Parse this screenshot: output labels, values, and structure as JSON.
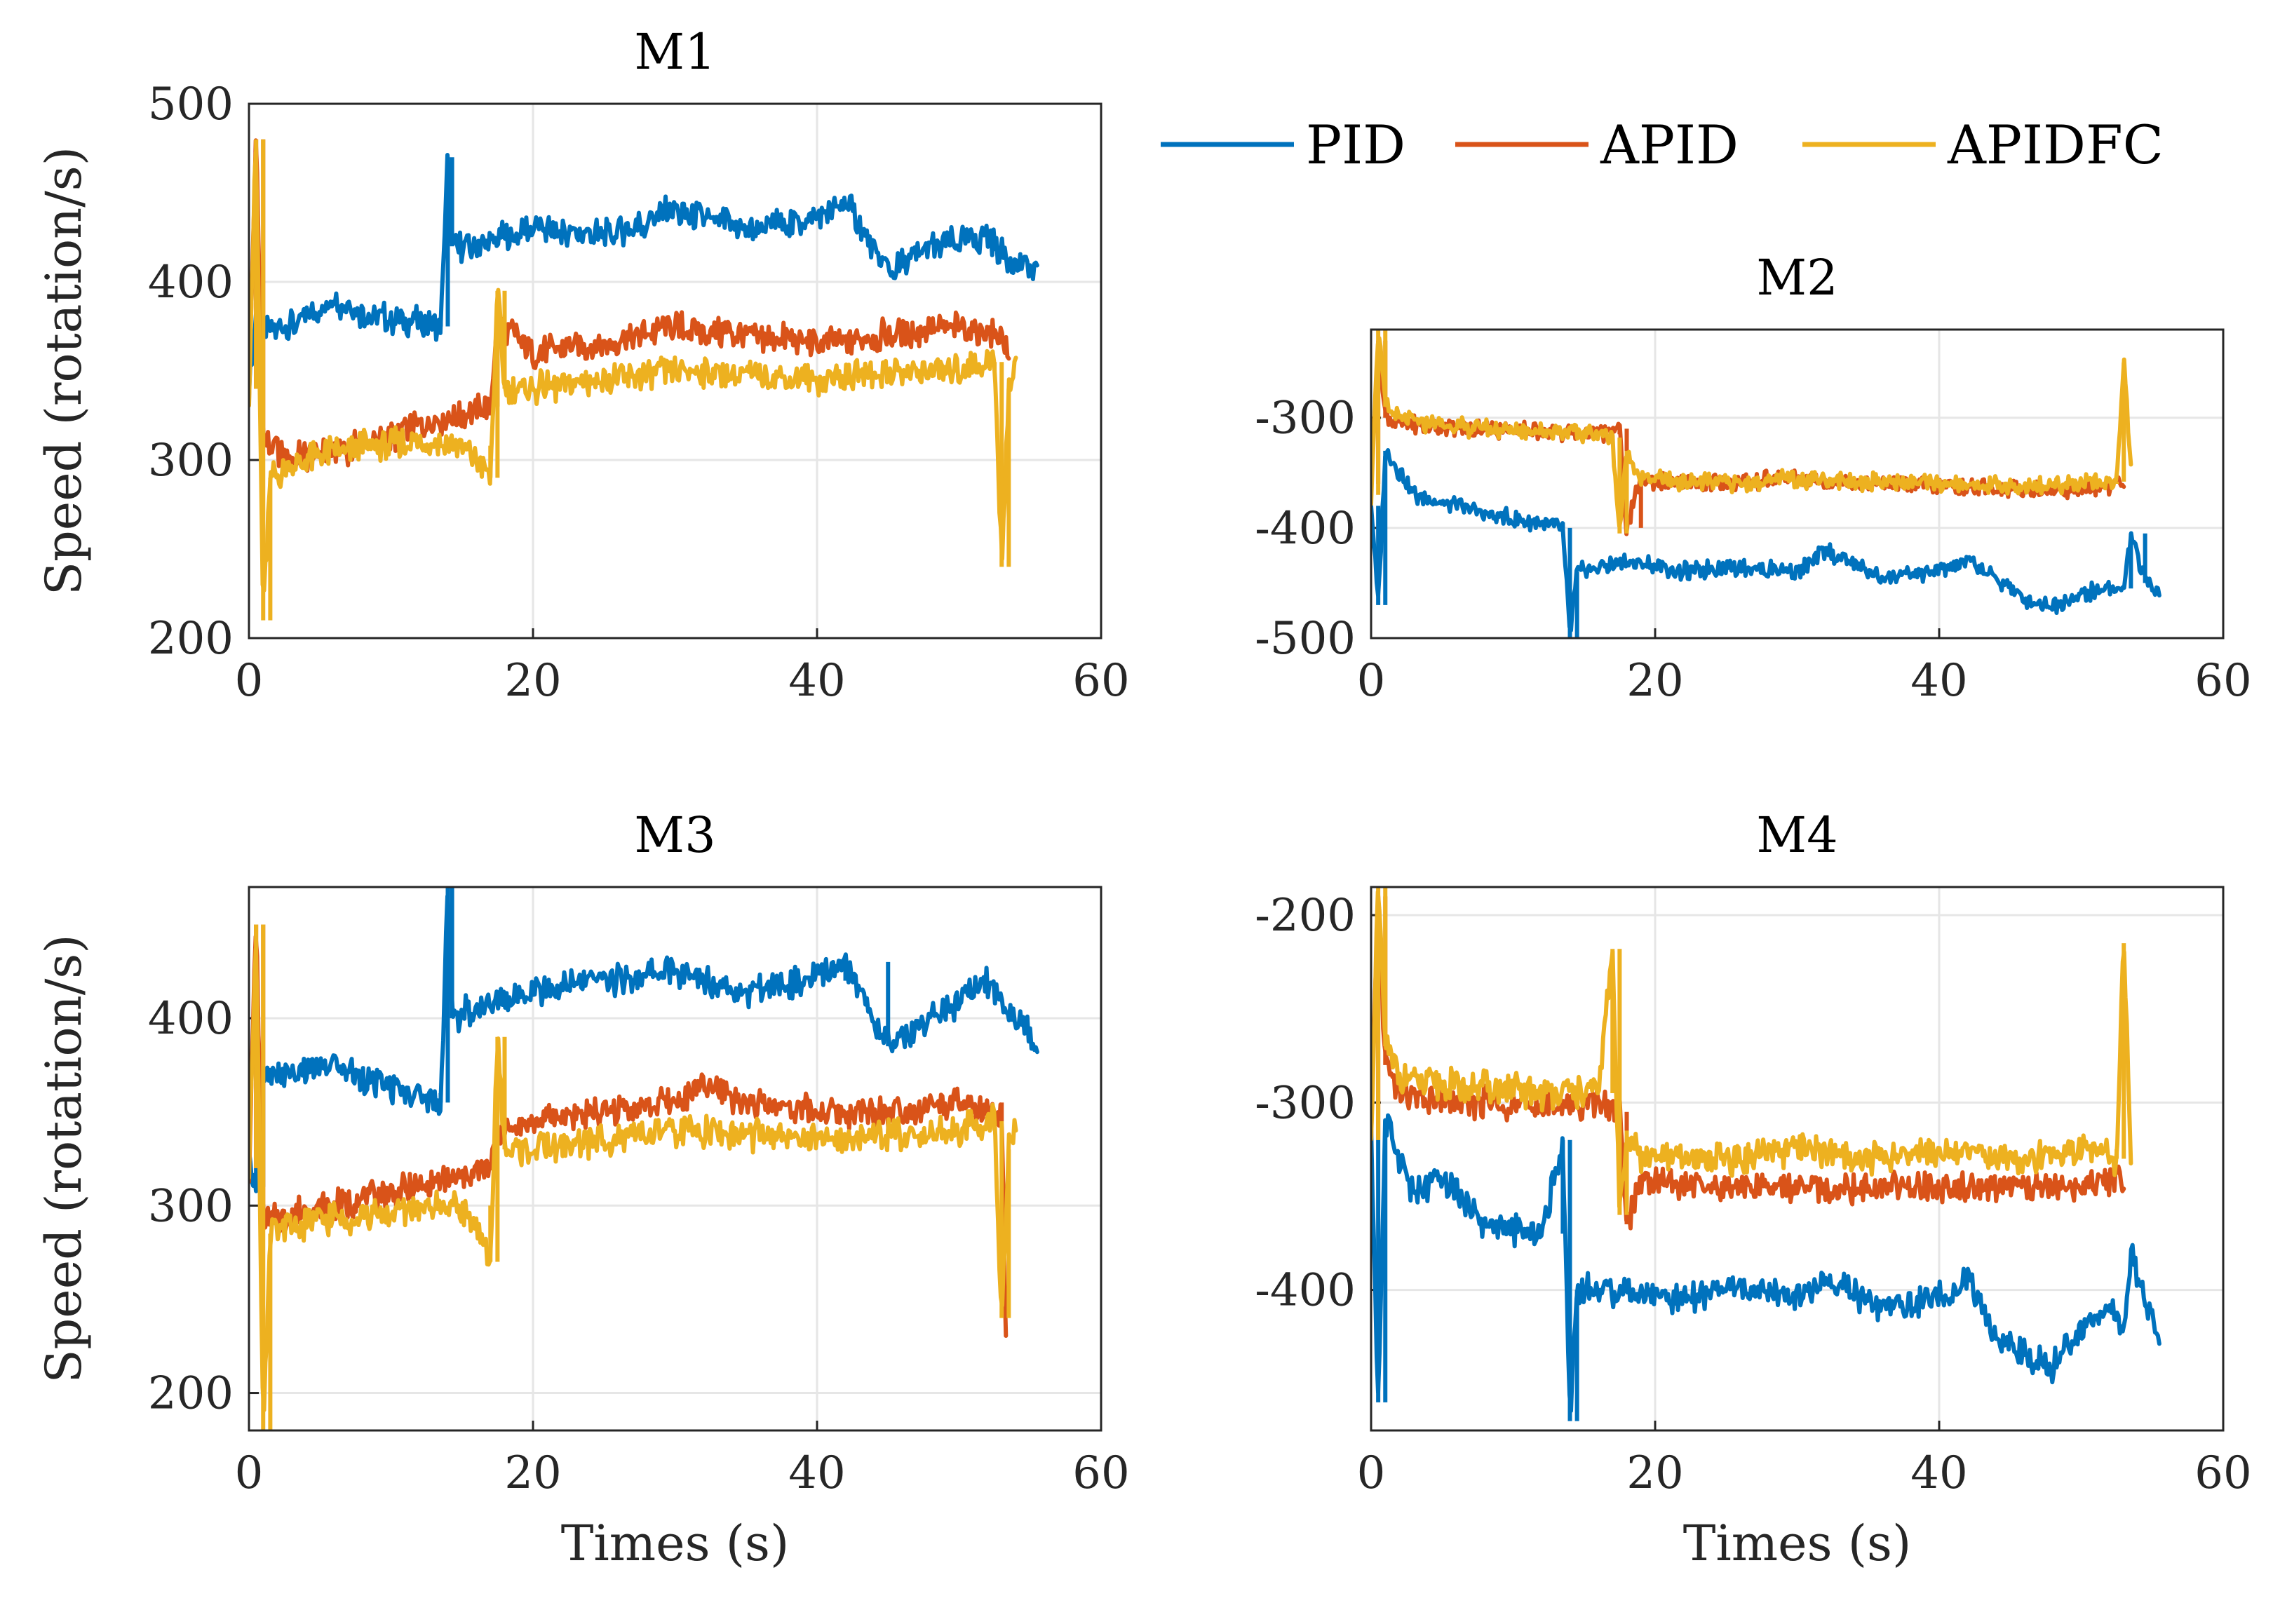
{
  "chart_data": [
    {
      "type": "line",
      "title": "M1",
      "xlabel": "",
      "ylabel": "Speed (rotation/s)",
      "xlim": [
        0,
        60
      ],
      "ylim": [
        200,
        500
      ],
      "xticks": [
        0,
        20,
        40,
        60
      ],
      "yticks": [
        200,
        300,
        400,
        500
      ],
      "grid": true,
      "series": [
        {
          "name": "PID",
          "x": [
            0,
            0.5,
            1,
            3,
            6,
            9,
            12,
            13.5,
            14,
            14.3,
            16,
            20,
            25,
            30,
            35,
            40,
            42,
            45,
            48,
            52,
            54,
            55.5
          ],
          "y": [
            340,
            380,
            370,
            375,
            390,
            380,
            378,
            375,
            470,
            420,
            420,
            430,
            425,
            440,
            430,
            435,
            445,
            405,
            420,
            425,
            410,
            405
          ]
        },
        {
          "name": "APID",
          "x": [
            0,
            0.5,
            1,
            3,
            6,
            9,
            12,
            15,
            17,
            17.5,
            20,
            25,
            30,
            35,
            40,
            45,
            50,
            53,
            53.5
          ],
          "y": [
            340,
            480,
            310,
            300,
            305,
            310,
            320,
            325,
            330,
            380,
            360,
            365,
            375,
            370,
            365,
            370,
            375,
            370,
            355
          ]
        },
        {
          "name": "APIDFC",
          "x": [
            0,
            0.5,
            1,
            1.5,
            3,
            6,
            9,
            12,
            15,
            17,
            17.5,
            18,
            20,
            25,
            30,
            35,
            40,
            45,
            50,
            52.5,
            53,
            53.5,
            54
          ],
          "y": [
            340,
            480,
            210,
            290,
            298,
            305,
            308,
            310,
            308,
            290,
            395,
            340,
            340,
            345,
            350,
            348,
            345,
            350,
            350,
            355,
            240,
            340,
            350
          ]
        }
      ]
    },
    {
      "type": "line",
      "title": "M2",
      "xlabel": "",
      "ylabel": "",
      "xlim": [
        0,
        60
      ],
      "ylim": [
        -500,
        -220
      ],
      "xticks": [
        0,
        20,
        40,
        60
      ],
      "yticks": [
        -500,
        -400,
        -300
      ],
      "grid": true,
      "series": [
        {
          "name": "PID",
          "x": [
            0,
            0.5,
            1,
            3,
            6,
            9,
            12,
            13.5,
            14,
            14.5,
            18,
            22,
            26,
            30,
            32,
            36,
            40,
            42,
            44,
            46,
            48,
            50,
            52,
            53,
            53.5,
            54.5,
            55.5
          ],
          "y": [
            -380,
            -470,
            -330,
            -370,
            -380,
            -390,
            -395,
            -400,
            -500,
            -440,
            -430,
            -440,
            -435,
            -440,
            -420,
            -445,
            -440,
            -430,
            -445,
            -465,
            -470,
            -460,
            -455,
            -455,
            -405,
            -450,
            -455
          ]
        },
        {
          "name": "APID",
          "x": [
            0,
            0.5,
            1,
            2,
            4,
            8,
            12,
            16,
            17.5,
            18,
            19,
            22,
            26,
            30,
            35,
            40,
            45,
            50,
            53
          ],
          "y": [
            -360,
            -230,
            -300,
            -305,
            -308,
            -310,
            -312,
            -315,
            -310,
            -400,
            -355,
            -360,
            -358,
            -355,
            -360,
            -362,
            -365,
            -365,
            -360
          ]
        },
        {
          "name": "APIDFC",
          "x": [
            0,
            0.5,
            1,
            2,
            4,
            8,
            12,
            16,
            17,
            17.5,
            18,
            19,
            22,
            26,
            30,
            35,
            40,
            45,
            50,
            52.5,
            53,
            53.5
          ],
          "y": [
            -370,
            -220,
            -290,
            -300,
            -305,
            -310,
            -312,
            -315,
            -318,
            -405,
            -330,
            -355,
            -358,
            -360,
            -355,
            -358,
            -360,
            -362,
            -360,
            -358,
            -250,
            -350
          ]
        }
      ]
    },
    {
      "type": "line",
      "title": "M3",
      "xlabel": "Times (s)",
      "ylabel": "Speed (rotation/s)",
      "xlim": [
        0,
        60
      ],
      "ylim": [
        180,
        470
      ],
      "xticks": [
        0,
        20,
        40,
        60
      ],
      "yticks": [
        200,
        300,
        400
      ],
      "grid": true,
      "series": [
        {
          "name": "PID",
          "x": [
            0,
            0.5,
            1,
            3,
            6,
            9,
            12,
            13.5,
            14,
            14.3,
            16,
            20,
            25,
            30,
            35,
            40,
            42,
            45,
            48,
            52,
            54,
            55.5
          ],
          "y": [
            320,
            310,
            365,
            370,
            375,
            365,
            360,
            355,
            470,
            400,
            405,
            415,
            420,
            425,
            415,
            420,
            430,
            385,
            400,
            420,
            400,
            385
          ]
        },
        {
          "name": "APID",
          "x": [
            0,
            0.5,
            1,
            3,
            6,
            9,
            12,
            15,
            17,
            17.5,
            20,
            25,
            30,
            32,
            35,
            40,
            45,
            50,
            53,
            53.3
          ],
          "y": [
            320,
            450,
            290,
            295,
            300,
            305,
            310,
            315,
            320,
            340,
            345,
            350,
            355,
            365,
            355,
            350,
            350,
            355,
            345,
            230
          ]
        },
        {
          "name": "APIDFC",
          "x": [
            0,
            0.5,
            1,
            1.5,
            3,
            6,
            9,
            12,
            15,
            17,
            17.5,
            18,
            20,
            25,
            30,
            35,
            40,
            45,
            50,
            52.5,
            53,
            53.5,
            54
          ],
          "y": [
            320,
            450,
            180,
            285,
            290,
            293,
            295,
            298,
            300,
            270,
            390,
            330,
            330,
            335,
            340,
            338,
            335,
            338,
            340,
            345,
            240,
            330,
            340
          ]
        }
      ]
    },
    {
      "type": "line",
      "title": "M4",
      "xlabel": "Times (s)",
      "ylabel": "",
      "xlim": [
        0,
        60
      ],
      "ylim": [
        -475,
        -185
      ],
      "xticks": [
        0,
        20,
        40,
        60
      ],
      "yticks": [
        -400,
        -300,
        -200
      ],
      "grid": true,
      "series": [
        {
          "name": "PID",
          "x": [
            0,
            0.5,
            1,
            3,
            5,
            8,
            12,
            13.5,
            14,
            14.5,
            18,
            22,
            26,
            30,
            32,
            36,
            40,
            42,
            44,
            46,
            48,
            50,
            52,
            53,
            53.5,
            54.5,
            55.5
          ],
          "y": [
            -320,
            -460,
            -310,
            -350,
            -340,
            -365,
            -370,
            -320,
            -470,
            -400,
            -400,
            -405,
            -400,
            -405,
            -395,
            -410,
            -405,
            -395,
            -425,
            -435,
            -440,
            -420,
            -410,
            -420,
            -380,
            -410,
            -425
          ]
        },
        {
          "name": "APID",
          "x": [
            0,
            0.5,
            1,
            2,
            4,
            8,
            12,
            16,
            17.5,
            18,
            19,
            22,
            26,
            30,
            35,
            40,
            45,
            50,
            53
          ],
          "y": [
            -320,
            -190,
            -280,
            -295,
            -300,
            -300,
            -302,
            -300,
            -305,
            -365,
            -340,
            -345,
            -345,
            -345,
            -345,
            -345,
            -345,
            -345,
            -340
          ]
        },
        {
          "name": "APIDFC",
          "x": [
            0,
            0.5,
            1,
            2,
            4,
            8,
            12,
            16,
            17,
            17.5,
            18,
            19,
            22,
            26,
            30,
            35,
            40,
            45,
            50,
            52.5,
            53,
            53.5
          ],
          "y": [
            -320,
            -185,
            -270,
            -285,
            -290,
            -292,
            -295,
            -295,
            -218,
            -360,
            -315,
            -330,
            -330,
            -330,
            -325,
            -330,
            -325,
            -330,
            -325,
            -330,
            -215,
            -330
          ]
        }
      ]
    }
  ],
  "legend": {
    "placement": "top-right",
    "entries": [
      {
        "name": "PID",
        "color": "#0072BD"
      },
      {
        "name": "APID",
        "color": "#D95319"
      },
      {
        "name": "APIDFC",
        "color": "#EDB120"
      }
    ]
  },
  "colors": {
    "PID": "#0072BD",
    "APID": "#D95319",
    "APIDFC": "#EDB120",
    "axis": "#262626",
    "grid": "#e6e6e6"
  }
}
